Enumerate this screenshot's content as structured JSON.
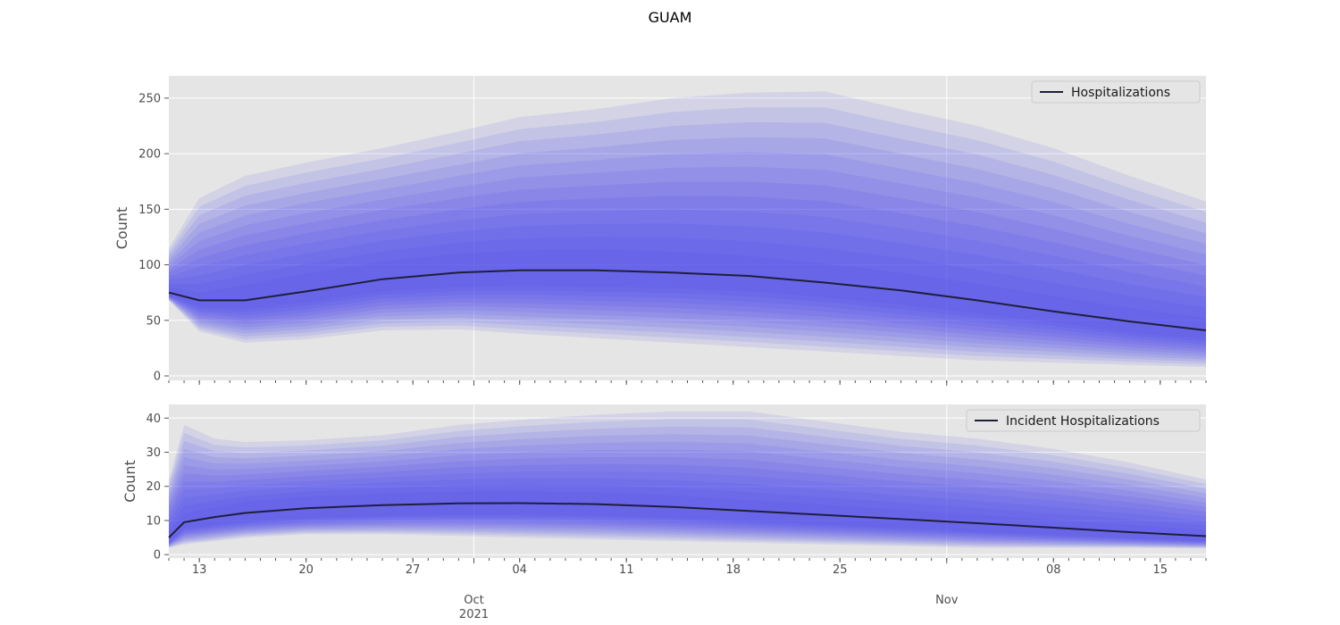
{
  "title": "GUAM",
  "colors": {
    "background": "#e5e5e5",
    "grid": "#ffffff",
    "band": "#4a45ee",
    "median": "#1f1f3a",
    "legend_bg": "#e5e5e5",
    "legend_border": "#cccccc"
  },
  "x_axis": {
    "start": "2021-09-11",
    "end": "2021-11-18",
    "major_ticks": [
      {
        "date": "2021-10-01",
        "label": "Oct",
        "sublabel": "2021"
      },
      {
        "date": "2021-11-01",
        "label": "Nov",
        "sublabel": ""
      }
    ],
    "minor_tick_labels": [
      {
        "date": "2021-09-13",
        "label": "13"
      },
      {
        "date": "2021-09-20",
        "label": "20"
      },
      {
        "date": "2021-09-27",
        "label": "27"
      },
      {
        "date": "2021-10-04",
        "label": "04"
      },
      {
        "date": "2021-10-11",
        "label": "11"
      },
      {
        "date": "2021-10-18",
        "label": "18"
      },
      {
        "date": "2021-10-25",
        "label": "25"
      },
      {
        "date": "2021-11-08",
        "label": "08"
      },
      {
        "date": "2021-11-15",
        "label": "15"
      }
    ]
  },
  "chart_data": [
    {
      "type": "area",
      "ylabel": "Count",
      "ylim": [
        -4,
        270
      ],
      "yticks": [
        0,
        50,
        100,
        150,
        200,
        250
      ],
      "grid": true,
      "legend": {
        "placement": "top-right",
        "entries": [
          "Hospitalizations"
        ]
      },
      "series": [
        {
          "name": "Hospitalizations",
          "x": [
            "2021-09-11",
            "2021-09-13",
            "2021-09-16",
            "2021-09-20",
            "2021-09-25",
            "2021-09-30",
            "2021-10-04",
            "2021-10-09",
            "2021-10-14",
            "2021-10-19",
            "2021-10-24",
            "2021-10-29",
            "2021-11-03",
            "2021-11-08",
            "2021-11-13",
            "2021-11-18"
          ],
          "median": [
            75,
            68,
            68,
            76,
            87,
            93,
            95,
            95,
            93,
            90,
            84,
            77,
            68,
            58,
            49,
            41
          ]
        }
      ],
      "bands": {
        "x": [
          "2021-09-11",
          "2021-09-13",
          "2021-09-16",
          "2021-09-20",
          "2021-09-25",
          "2021-09-30",
          "2021-10-04",
          "2021-10-09",
          "2021-10-14",
          "2021-10-19",
          "2021-10-24",
          "2021-10-29",
          "2021-11-03",
          "2021-11-08",
          "2021-11-13",
          "2021-11-18"
        ],
        "outer_upper": [
          115,
          160,
          180,
          192,
          205,
          220,
          233,
          240,
          250,
          255,
          256,
          240,
          225,
          205,
          180,
          157
        ],
        "outer_lower": [
          68,
          40,
          30,
          33,
          41,
          42,
          38,
          34,
          30,
          26,
          22,
          18,
          14,
          12,
          10,
          8
        ],
        "inner_upper": [
          80,
          75,
          82,
          92,
          103,
          110,
          113,
          114,
          112,
          108,
          101,
          93,
          83,
          72,
          61,
          52
        ],
        "inner_lower": [
          72,
          62,
          60,
          66,
          76,
          80,
          81,
          80,
          79,
          76,
          71,
          64,
          56,
          48,
          39,
          33
        ]
      }
    },
    {
      "type": "area",
      "ylabel": "Count",
      "ylim": [
        -1,
        44
      ],
      "yticks": [
        0,
        10,
        20,
        30,
        40
      ],
      "grid": true,
      "legend": {
        "placement": "top-right",
        "entries": [
          "Incident Hospitalizations"
        ]
      },
      "series": [
        {
          "name": "Incident Hospitalizations",
          "x": [
            "2021-09-11",
            "2021-09-12",
            "2021-09-14",
            "2021-09-16",
            "2021-09-20",
            "2021-09-25",
            "2021-09-30",
            "2021-10-04",
            "2021-10-09",
            "2021-10-14",
            "2021-10-19",
            "2021-10-24",
            "2021-10-29",
            "2021-11-03",
            "2021-11-08",
            "2021-11-13",
            "2021-11-18"
          ],
          "median": [
            5,
            9.5,
            11,
            12.2,
            13.6,
            14.5,
            15,
            15.1,
            14.8,
            14,
            12.8,
            11.6,
            10.4,
            9.2,
            7.9,
            6.6,
            5.4
          ]
        }
      ],
      "bands": {
        "x": [
          "2021-09-11",
          "2021-09-12",
          "2021-09-14",
          "2021-09-16",
          "2021-09-20",
          "2021-09-25",
          "2021-09-30",
          "2021-10-04",
          "2021-10-09",
          "2021-10-14",
          "2021-10-19",
          "2021-10-24",
          "2021-10-29",
          "2021-11-03",
          "2021-11-08",
          "2021-11-13",
          "2021-11-18"
        ],
        "outer_upper": [
          22,
          38,
          34,
          33,
          33.5,
          35,
          38,
          39.5,
          41,
          42,
          42,
          39,
          36,
          34,
          31,
          27,
          22
        ],
        "outer_lower": [
          2,
          3,
          4,
          5,
          6,
          6,
          5.5,
          5,
          4.5,
          4,
          3.5,
          3,
          2.5,
          2,
          2,
          2,
          1.8
        ],
        "inner_upper": [
          7,
          12,
          14,
          15.5,
          17,
          18,
          18.5,
          18.6,
          18.3,
          17.4,
          16,
          14.6,
          13.2,
          11.7,
          10.2,
          8.7,
          7.2
        ],
        "inner_lower": [
          3.5,
          7.5,
          8.6,
          9.5,
          10.6,
          11.3,
          11.7,
          11.7,
          11.4,
          10.7,
          9.7,
          8.7,
          7.7,
          6.7,
          5.7,
          4.8,
          4
        ]
      }
    }
  ]
}
